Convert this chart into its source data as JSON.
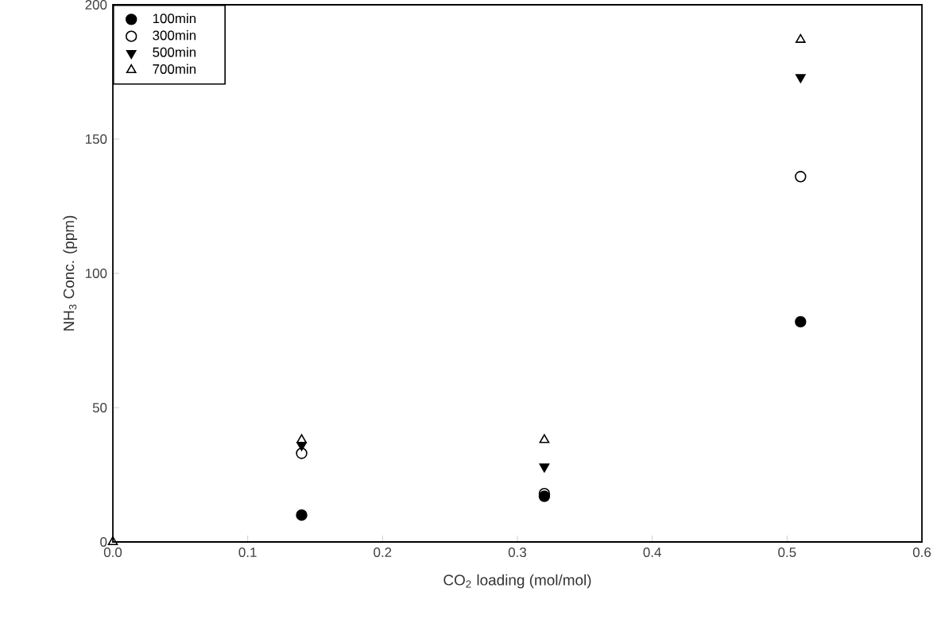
{
  "chart_data": {
    "type": "scatter",
    "xlabel": "CO$_{2}$ loading (mol/mol)",
    "ylabel": "NH$_{3}$ Conc. (ppm)",
    "x": [
      0.0,
      0.14,
      0.32,
      0.51
    ],
    "series": [
      {
        "name": "100min",
        "color": "#000000",
        "marker": "circle",
        "values": [
          null,
          10,
          17,
          82
        ]
      },
      {
        "name": "300min",
        "color": "#000000",
        "marker": "circle",
        "values": [
          null,
          33,
          18,
          136
        ]
      },
      {
        "name": "500min",
        "color": "#000000",
        "marker": "triangle",
        "values": [
          null,
          36,
          28,
          173
        ]
      },
      {
        "name": "700min",
        "color": "#000000",
        "marker": "triangle",
        "values": [
          0,
          38,
          38,
          187
        ]
      }
    ],
    "xlim": [
      0.0,
      0.6
    ],
    "ylim": [
      0,
      200
    ],
    "xticks": [
      {
        "value": 0.0,
        "label": "0.0"
      },
      0.1,
      0.2,
      0.3,
      0.4,
      0.5,
      0.6
    ],
    "yticks": [
      0,
      50,
      100,
      150,
      200
    ],
    "grid": false,
    "legend": "top left"
  }
}
